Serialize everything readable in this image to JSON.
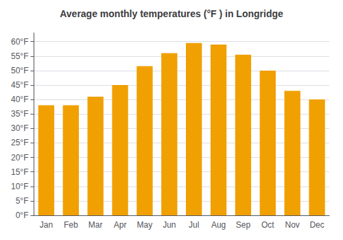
{
  "chart_data": {
    "type": "bar",
    "title": "Average monthly temperatures (°F ) in Longridge",
    "categories": [
      "Jan",
      "Feb",
      "Mar",
      "Apr",
      "May",
      "Jun",
      "Jul",
      "Aug",
      "Sep",
      "Oct",
      "Nov",
      "Dec"
    ],
    "values": [
      38,
      38,
      41,
      45,
      51.5,
      56,
      59.5,
      59,
      55.5,
      50,
      43,
      40
    ],
    "color": "#F0A000",
    "ylim": [
      0,
      63
    ],
    "yticks": [
      {
        "value": 0,
        "label": "0°F"
      },
      {
        "value": 5,
        "label": "5°F"
      },
      {
        "value": 10,
        "label": "10°F"
      },
      {
        "value": 15,
        "label": "15°F"
      },
      {
        "value": 20,
        "label": "20°F"
      },
      {
        "value": 25,
        "label": "25°F"
      },
      {
        "value": 30,
        "label": "30°F"
      },
      {
        "value": 35,
        "label": "35°F"
      },
      {
        "value": 40,
        "label": "40°F"
      },
      {
        "value": 45,
        "label": "45°F"
      },
      {
        "value": 50,
        "label": "50°F"
      },
      {
        "value": 55,
        "label": "55°F"
      },
      {
        "value": 60,
        "label": "60°F"
      }
    ],
    "grid": true
  }
}
